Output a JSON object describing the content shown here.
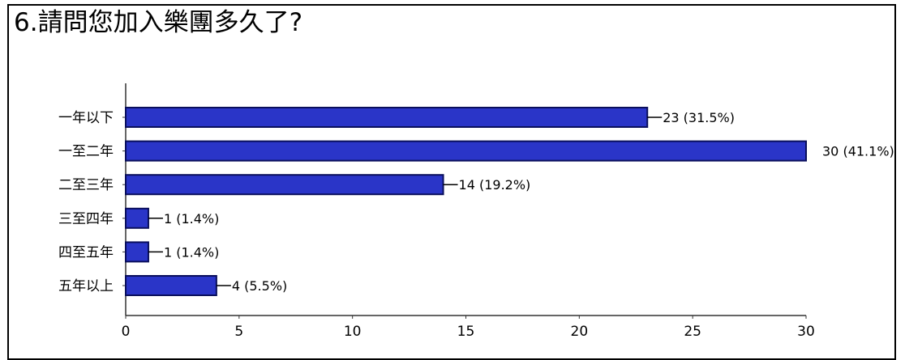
{
  "chart_data": {
    "type": "bar",
    "orientation": "horizontal",
    "title": "6.請問您加入樂團多久了?",
    "categories": [
      "一年以下",
      "一至二年",
      "二至三年",
      "三至四年",
      "四至五年",
      "五年以上"
    ],
    "values": [
      23,
      30,
      14,
      1,
      1,
      4
    ],
    "value_labels": [
      "23 (31.5%)",
      "30 (41.1%)",
      "14 (19.2%)",
      "1 (1.4%)",
      "1 (1.4%)",
      "4 (5.5%)"
    ],
    "xlim": [
      0,
      30
    ],
    "xticks": [
      "0",
      "5",
      "10",
      "15",
      "20",
      "25",
      "30"
    ],
    "xlabel": "",
    "ylabel": "",
    "grid": false,
    "bar_color": "#2a35c8",
    "bar_edge_color": "#0a0f5c"
  }
}
